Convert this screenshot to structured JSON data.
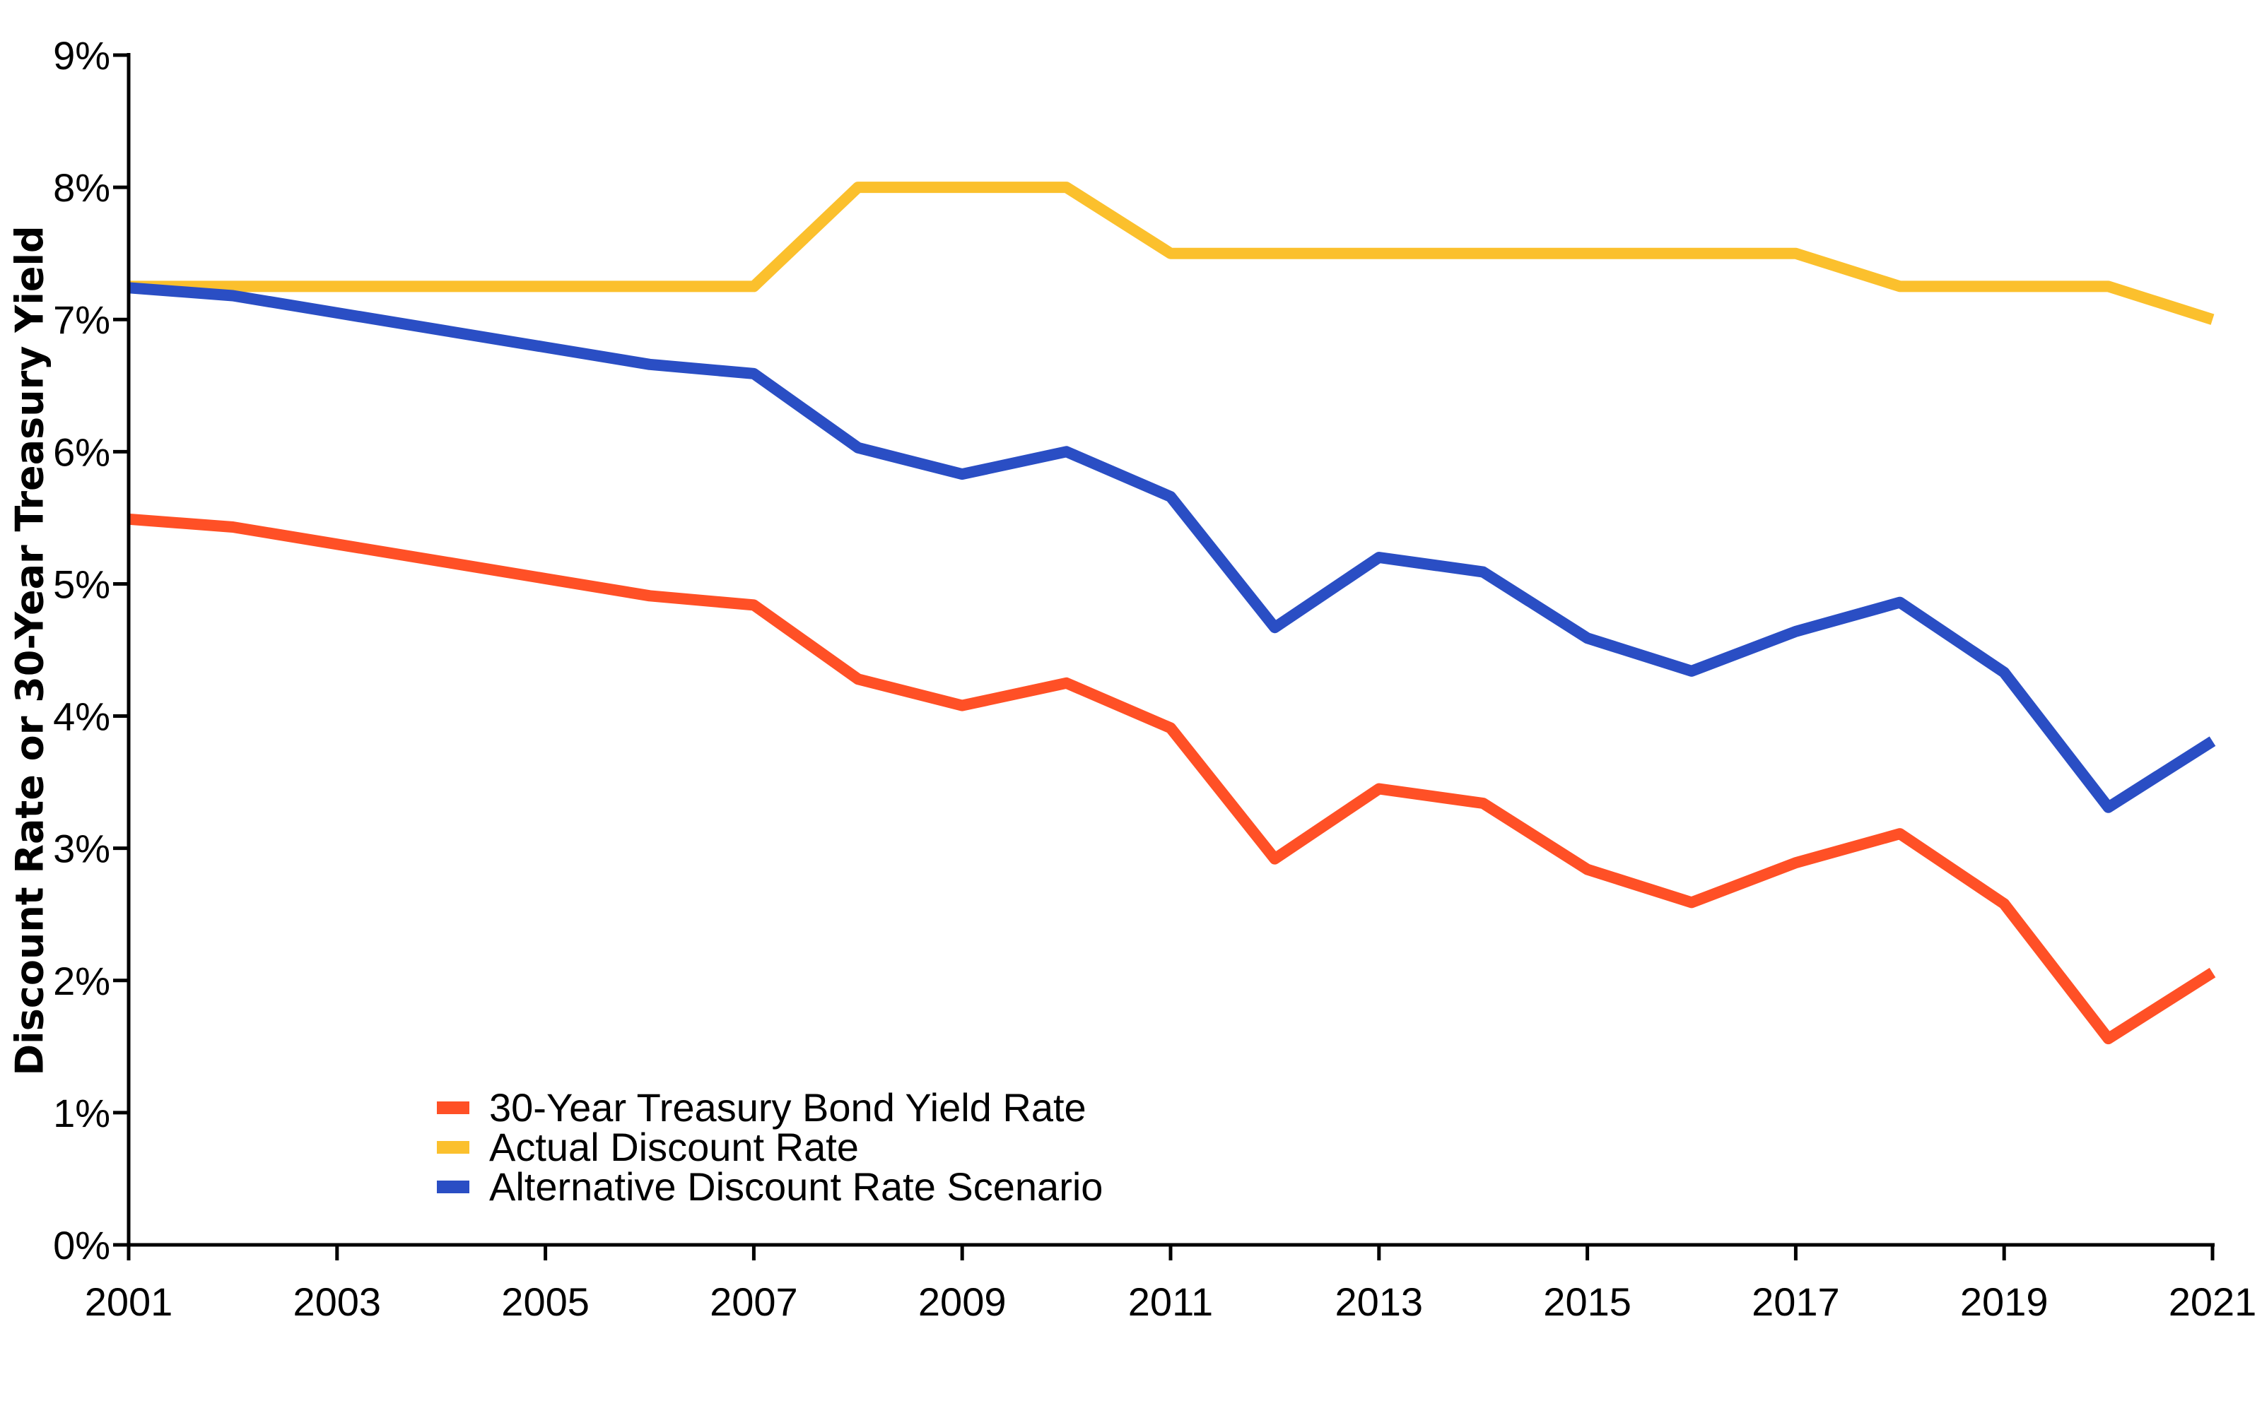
{
  "chart_data": {
    "type": "line",
    "title": "",
    "xlabel": "",
    "ylabel": "Discount Rate or 30-Year Treasury Yield",
    "x": [
      2001,
      2002,
      2003,
      2004,
      2005,
      2006,
      2007,
      2008,
      2009,
      2010,
      2011,
      2012,
      2013,
      2014,
      2015,
      2016,
      2017,
      2018,
      2019,
      2020,
      2021
    ],
    "xlim": [
      2001,
      2021
    ],
    "ylim": [
      0,
      9
    ],
    "x_ticks": [
      2001,
      2003,
      2005,
      2007,
      2009,
      2011,
      2013,
      2015,
      2017,
      2019,
      2021
    ],
    "x_tick_labels": [
      "2001",
      "2003",
      "2005",
      "2007",
      "2009",
      "2011",
      "2013",
      "2015",
      "2017",
      "2019",
      "2021"
    ],
    "y_ticks": [
      0,
      1,
      2,
      3,
      4,
      5,
      6,
      7,
      8,
      9
    ],
    "y_tick_labels": [
      "0%",
      "1%",
      "2%",
      "3%",
      "4%",
      "5%",
      "6%",
      "7%",
      "8%",
      "9%"
    ],
    "grid": false,
    "legend_position": "bottom-left",
    "series": [
      {
        "name": "30-Year Treasury Bond Yield Rate",
        "color": "#FF5026",
        "values": [
          5.49,
          5.43,
          5.3,
          5.17,
          5.04,
          4.91,
          4.84,
          4.28,
          4.08,
          4.25,
          3.91,
          2.92,
          3.45,
          3.34,
          2.84,
          2.59,
          2.89,
          3.11,
          2.58,
          1.56,
          2.06
        ]
      },
      {
        "name": "Actual Discount Rate",
        "color": "#FBC02D",
        "values": [
          7.25,
          7.25,
          7.25,
          7.25,
          7.25,
          7.25,
          7.25,
          8.0,
          8.0,
          8.0,
          7.5,
          7.5,
          7.5,
          7.5,
          7.5,
          7.5,
          7.5,
          7.25,
          7.25,
          7.25,
          7.0
        ]
      },
      {
        "name": "Alternative Discount Rate Scenario",
        "color": "#2A4EC4",
        "values": [
          7.24,
          7.18,
          7.05,
          6.92,
          6.79,
          6.66,
          6.59,
          6.03,
          5.83,
          6.0,
          5.66,
          4.67,
          5.2,
          5.09,
          4.59,
          4.34,
          4.64,
          4.86,
          4.33,
          3.31,
          3.81
        ]
      }
    ]
  }
}
